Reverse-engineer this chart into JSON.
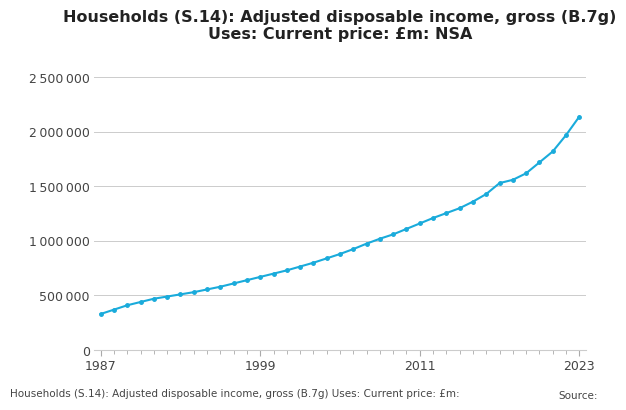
{
  "title": "Households (S.14): Adjusted disposable income, gross (B.7g)\nUses: Current price: £m: NSA",
  "footer": "Households (S.14): Adjusted disposable income, gross (B.7g) Uses: Current price: £m:",
  "footer2": "Source:",
  "years": [
    1987,
    1988,
    1989,
    1990,
    1991,
    1992,
    1993,
    1994,
    1995,
    1996,
    1997,
    1998,
    1999,
    2000,
    2001,
    2002,
    2003,
    2004,
    2005,
    2006,
    2007,
    2008,
    2009,
    2010,
    2011,
    2012,
    2013,
    2014,
    2015,
    2016,
    2017,
    2018,
    2019,
    2020,
    2021,
    2022,
    2023
  ],
  "values": [
    330000,
    370000,
    410000,
    440000,
    470000,
    490000,
    510000,
    530000,
    555000,
    580000,
    610000,
    640000,
    670000,
    700000,
    730000,
    765000,
    800000,
    840000,
    880000,
    925000,
    975000,
    1020000,
    1060000,
    1110000,
    1160000,
    1210000,
    1255000,
    1300000,
    1360000,
    1430000,
    1530000,
    1560000,
    1620000,
    1720000,
    1820000,
    1970000,
    2140000
  ],
  "line_color": "#1aabdb",
  "marker": "o",
  "marker_size": 2.5,
  "line_width": 1.5,
  "ylim": [
    0,
    2750000
  ],
  "yticks": [
    0,
    500000,
    1000000,
    1500000,
    2000000,
    2500000
  ],
  "ytick_labels": [
    "0",
    "500 000",
    "1 000 000",
    "1 500 000",
    "2 000 000",
    "2 500 000"
  ],
  "xtick_years": [
    1987,
    1999,
    2011,
    2023
  ],
  "grid_color": "#cccccc",
  "background_color": "#ffffff",
  "title_fontsize": 11.5,
  "tick_fontsize": 9,
  "footer_fontsize": 7.5
}
